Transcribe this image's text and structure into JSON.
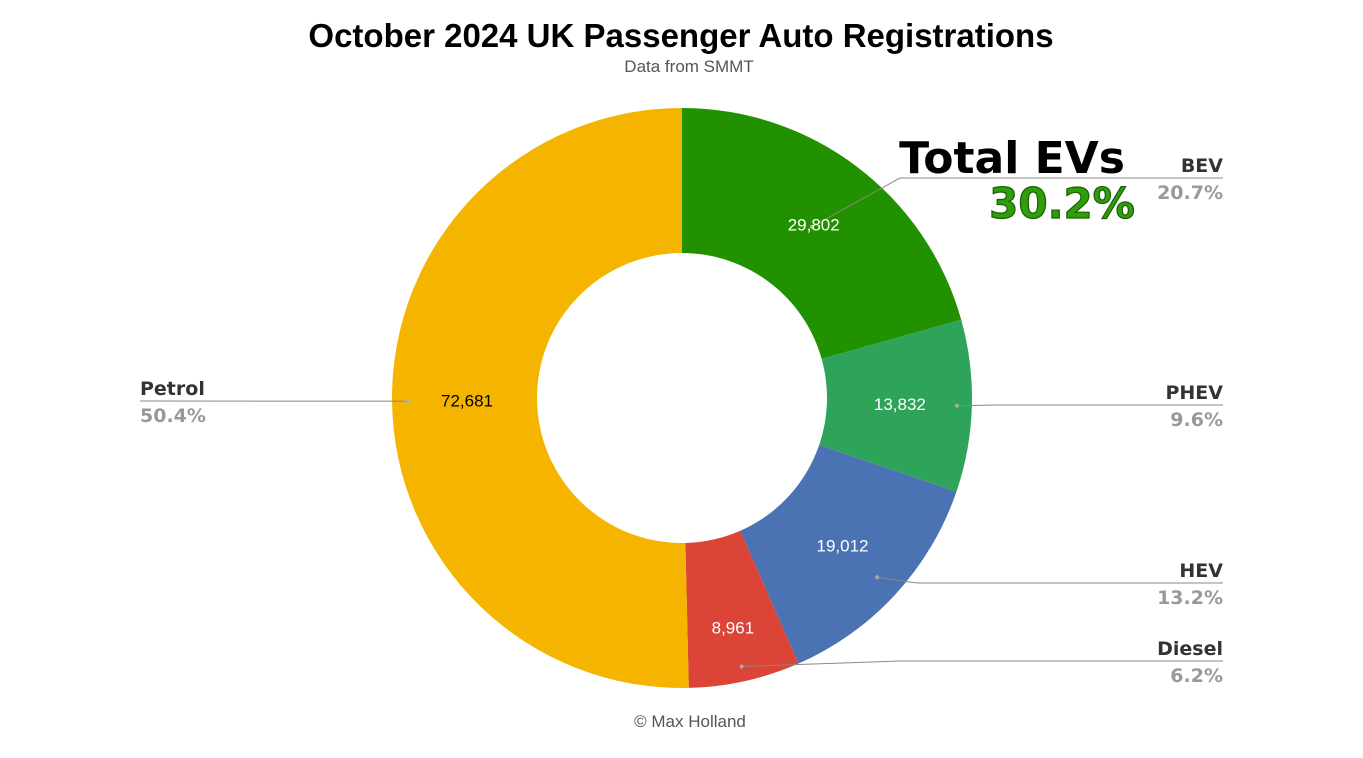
{
  "chart_data": {
    "type": "pie",
    "title": "October 2024 UK Passenger Auto Registrations",
    "subtitle": "Data from SMMT",
    "footer": "© Max Holland",
    "donut": true,
    "slices": [
      {
        "label": "BEV",
        "value": 29802,
        "value_label": "29,802",
        "percent": "20.7%",
        "color": "#229100"
      },
      {
        "label": "PHEV",
        "value": 13832,
        "value_label": "13,832",
        "percent": "9.6%",
        "color": "#2ea35a"
      },
      {
        "label": "HEV",
        "value": 19012,
        "value_label": "19,012",
        "percent": "13.2%",
        "color": "#4b72b2"
      },
      {
        "label": "Diesel",
        "value": 8961,
        "value_label": "8,961",
        "percent": "6.2%",
        "color": "#db4437"
      },
      {
        "label": "Petrol",
        "value": 72681,
        "value_label": "72,681",
        "percent": "50.4%",
        "color": "#f4b400"
      }
    ],
    "annotation": {
      "title": "Total EVs",
      "value": "30.2%",
      "color": "#2e9e0c"
    }
  }
}
